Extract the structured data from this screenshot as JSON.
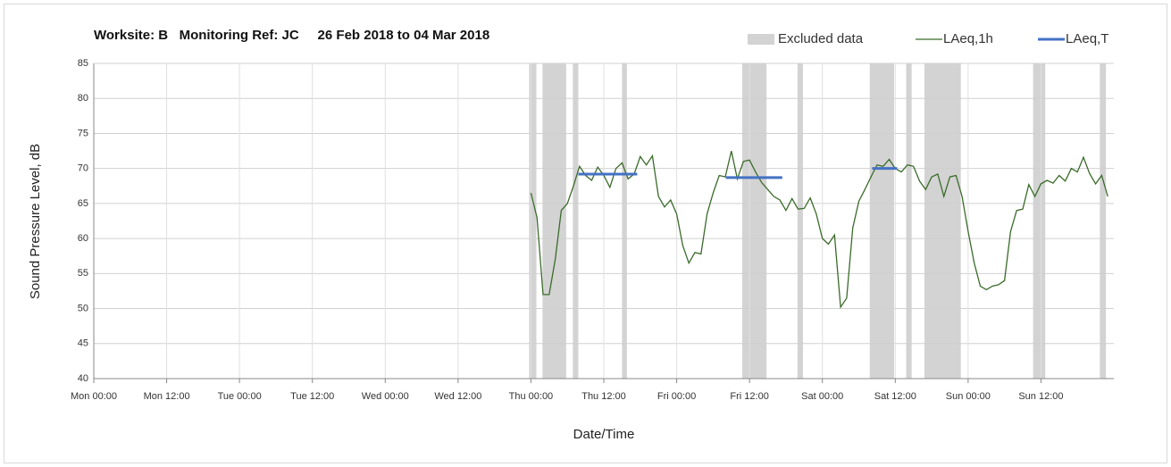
{
  "chart_data": {
    "type": "line",
    "title": "Worksite: B   Monitoring Ref: JC     26 Feb 2018 to 04 Mar 2018",
    "xlabel": "Date/Time",
    "ylabel": "Sound Pressure Level, dB",
    "xlim": [
      0,
      168
    ],
    "ylim": [
      40,
      85
    ],
    "yticks": [
      40,
      45,
      50,
      55,
      60,
      65,
      70,
      75,
      80,
      85
    ],
    "xticks": [
      {
        "value": 0,
        "label": "Mon 00:00"
      },
      {
        "value": 12,
        "label": "Mon 12:00"
      },
      {
        "value": 24,
        "label": "Tue 00:00"
      },
      {
        "value": 36,
        "label": "Tue 12:00"
      },
      {
        "value": 48,
        "label": "Wed 00:00"
      },
      {
        "value": 60,
        "label": "Wed 12:00"
      },
      {
        "value": 72,
        "label": "Thu 00:00"
      },
      {
        "value": 84,
        "label": "Thu 12:00"
      },
      {
        "value": 96,
        "label": "Fri 00:00"
      },
      {
        "value": 108,
        "label": "Fri 12:00"
      },
      {
        "value": 120,
        "label": "Sat 00:00"
      },
      {
        "value": 132,
        "label": "Sat 12:00"
      },
      {
        "value": 144,
        "label": "Sun 00:00"
      },
      {
        "value": 156,
        "label": "Sun 12:00"
      }
    ],
    "grid": true,
    "excluded": {
      "name": "Excluded data",
      "color": "#d3d3d3",
      "ranges": [
        [
          71.7,
          72.9
        ],
        [
          73.9,
          77.8
        ],
        [
          78.9,
          79.8
        ],
        [
          87,
          87.8
        ],
        [
          106.8,
          110.8
        ],
        [
          115.9,
          116.8
        ],
        [
          127.8,
          131.8
        ],
        [
          133.8,
          134.7
        ],
        [
          136.8,
          142.8
        ],
        [
          154.7,
          156.7
        ],
        [
          165.7,
          166.7
        ]
      ]
    },
    "series": [
      {
        "name": "LAeq,1h",
        "color": "#3b6b2a",
        "x": [
          72,
          73,
          74,
          75,
          76,
          77,
          78,
          79,
          80,
          81,
          82,
          83,
          84,
          85,
          86,
          87,
          88,
          89,
          90,
          91,
          92,
          93,
          94,
          95,
          96,
          97,
          98,
          99,
          100,
          101,
          102,
          103,
          104,
          105,
          106,
          107,
          108,
          109,
          110,
          111,
          112,
          113,
          114,
          115,
          116,
          117,
          118,
          119,
          120,
          121,
          122,
          123,
          124,
          125,
          126,
          127,
          128,
          129,
          130,
          131,
          132,
          133,
          134,
          135,
          136,
          137,
          138,
          139,
          140,
          141,
          142,
          143,
          144,
          145,
          146,
          147,
          148,
          149,
          150,
          151,
          152,
          153,
          154,
          155,
          156,
          157,
          158,
          159,
          160,
          161,
          162,
          163,
          164,
          165,
          166,
          167
        ],
        "values": [
          66.5,
          63,
          52,
          52,
          57,
          64,
          65,
          67.5,
          70.3,
          69,
          68.3,
          70.2,
          69,
          67.3,
          70,
          70.8,
          68.5,
          69.2,
          71.7,
          70.5,
          71.8,
          66,
          64.5,
          65.5,
          63.5,
          59,
          56.5,
          58,
          57.8,
          63.5,
          66.5,
          69,
          68.8,
          72.5,
          68.5,
          71,
          71.2,
          69.5,
          68,
          67,
          66,
          65.5,
          64,
          65.7,
          64.2,
          64.3,
          65.8,
          63.5,
          60,
          59.2,
          60.5,
          50.2,
          51.5,
          61.5,
          65.3,
          67,
          68.8,
          70.5,
          70.3,
          71.3,
          70,
          69.5,
          70.5,
          70.3,
          68.2,
          67,
          68.8,
          69.2,
          66,
          68.8,
          69,
          66,
          61,
          56.5,
          53.2,
          52.7,
          53.2,
          53.4,
          54,
          61,
          64,
          64.2,
          67.7,
          66,
          67.8,
          68.3,
          67.9,
          69,
          68.2,
          70,
          69.5,
          71.6,
          69.3,
          67.8,
          69,
          66
        ]
      },
      {
        "name": "LAeq,T",
        "color": "#4472c4",
        "segments": [
          {
            "x": [
              79.8,
              89.5
            ],
            "value": 69.2
          },
          {
            "x": [
              104.1,
              113.4
            ],
            "value": 68.7
          },
          {
            "x": [
              128.2,
              132.3
            ],
            "value": 70
          }
        ]
      }
    ]
  }
}
